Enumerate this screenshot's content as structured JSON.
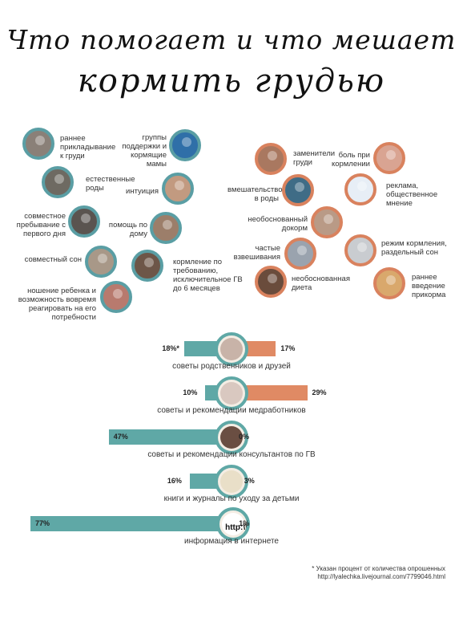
{
  "title_line1": "Что помогает и что мешает",
  "title_line2": "кормить грудью",
  "helps": [
    {
      "label": "раннее прикладывание к груди",
      "icon": "baby-photo-icon"
    },
    {
      "label": "группы поддержки и кормящие мамы",
      "icon": "mother-baby-logo-icon"
    },
    {
      "label": "естественные роды",
      "icon": "birth-photo-icon"
    },
    {
      "label": "интуиция",
      "icon": "mother-photo-icon"
    },
    {
      "label": "совместное пребывание с первого дня",
      "icon": "cosleep-photo-icon"
    },
    {
      "label": "помощь по дому",
      "icon": "family-photo-icon"
    },
    {
      "label": "совместный сон",
      "icon": "sleep-photo-icon"
    },
    {
      "label": "кормление по требованию, исключительное ГВ до 6 месяцев",
      "icon": "feeding-photo-icon"
    },
    {
      "label": "ношение ребенка и возможность вовремя реагировать на его потребности",
      "icon": "sling-photo-icon"
    }
  ],
  "hinders": [
    {
      "label": "заменители груди",
      "icon": "bottle-photo-icon"
    },
    {
      "label": "боль при кормлении",
      "icon": "pain-photo-icon"
    },
    {
      "label": "вмешательство в роды",
      "icon": "hospital-photo-icon"
    },
    {
      "label": "реклама, общественное мнение",
      "icon": "formula-ad-icon"
    },
    {
      "label": "необоснованный докорм",
      "icon": "supplement-photo-icon"
    },
    {
      "label": "частые взвешивания",
      "icon": "scale-photo-icon"
    },
    {
      "label": "режим кормления, раздельный сон",
      "icon": "crib-photo-icon"
    },
    {
      "label": "необоснованная диета",
      "icon": "bread-photo-icon"
    },
    {
      "label": "раннее введение прикорма",
      "icon": "spoon-photo-icon"
    }
  ],
  "colors": {
    "teal": "#5fa8a6",
    "orange": "#e08a64"
  },
  "chart_data": {
    "type": "bar",
    "categories": [
      "советы родственников и друзей",
      "советы и рекомендации медработников",
      "советы и рекомендации консультантов по ГВ",
      "книги и журналы по уходу за детьми",
      "информация в интернете"
    ],
    "series": [
      {
        "values": [
          18,
          10,
          47,
          16,
          77
        ],
        "labels": [
          "18%*",
          "10%",
          "47%",
          "16%",
          "77%"
        ]
      },
      {
        "values": [
          17,
          29,
          0,
          3,
          1
        ],
        "labels": [
          "17%",
          "29%",
          "0%",
          "3%",
          "1%"
        ]
      }
    ],
    "icons": [
      "grandmother-photo-icon",
      "doctor-photo-icon",
      "consultant-photo-icon",
      "book-icon",
      "http-icon"
    ],
    "http_text": "http:\\\\"
  },
  "footnote_line1": "* Указан процент от количества опрошенных",
  "footnote_line2": "http://lyalechka.livejournal.com/7799046.html"
}
